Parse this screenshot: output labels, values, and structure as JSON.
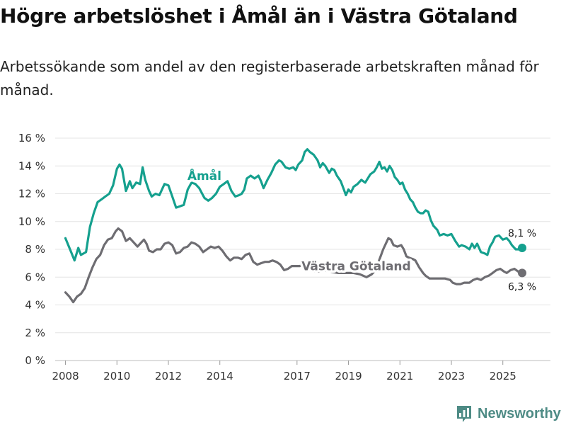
{
  "title": "Högre arbetslöshet i Åmål än i Västra Götaland",
  "subtitle": "Arbetssökande som andel av den registerbaserade arbetskraften månad för månad.",
  "brand": {
    "name": "Newsworthy",
    "icon": "newsworthy-logo-icon",
    "color": "#4e8b85"
  },
  "chart_data": {
    "type": "line",
    "title": "Högre arbetslöshet i Åmål än i Västra Götaland",
    "xlabel": "",
    "ylabel": "",
    "xlim": [
      2007.6,
      2026.85
    ],
    "ylim": [
      0,
      16
    ],
    "yticks": [
      0,
      2,
      4,
      6,
      8,
      10,
      12,
      14,
      16
    ],
    "ytick_labels": [
      "0 %",
      "2 %",
      "4 %",
      "6 %",
      "8 %",
      "10 %",
      "12 %",
      "14 %",
      "16 %"
    ],
    "xticks": [
      2008,
      2010,
      2012,
      2014,
      2017,
      2019,
      2021,
      2023,
      2025
    ],
    "xtick_labels": [
      "2008",
      "2010",
      "2012",
      "2014",
      "2017",
      "2019",
      "2021",
      "2023",
      "2025"
    ],
    "grid": true,
    "legend": "inline",
    "series": [
      {
        "name": "Åmål",
        "color": "#15a08e",
        "label_at": [
          2013.4,
          13.0
        ],
        "end_label": "8,1 %",
        "points": [
          [
            2008.0,
            8.8
          ],
          [
            2008.2,
            7.9
          ],
          [
            2008.35,
            7.2
          ],
          [
            2008.5,
            8.1
          ],
          [
            2008.6,
            7.6
          ],
          [
            2008.8,
            7.8
          ],
          [
            2008.95,
            9.6
          ],
          [
            2009.1,
            10.6
          ],
          [
            2009.25,
            11.4
          ],
          [
            2009.4,
            11.6
          ],
          [
            2009.55,
            11.8
          ],
          [
            2009.7,
            12.0
          ],
          [
            2009.85,
            12.6
          ],
          [
            2010.0,
            13.8
          ],
          [
            2010.1,
            14.1
          ],
          [
            2010.2,
            13.8
          ],
          [
            2010.35,
            12.2
          ],
          [
            2010.5,
            12.9
          ],
          [
            2010.6,
            12.4
          ],
          [
            2010.75,
            12.8
          ],
          [
            2010.9,
            12.7
          ],
          [
            2011.0,
            13.9
          ],
          [
            2011.1,
            13.0
          ],
          [
            2011.25,
            12.2
          ],
          [
            2011.35,
            11.8
          ],
          [
            2011.5,
            12.0
          ],
          [
            2011.65,
            11.9
          ],
          [
            2011.85,
            12.7
          ],
          [
            2012.0,
            12.6
          ],
          [
            2012.15,
            11.8
          ],
          [
            2012.3,
            11.0
          ],
          [
            2012.45,
            11.1
          ],
          [
            2012.6,
            11.2
          ],
          [
            2012.75,
            12.3
          ],
          [
            2012.9,
            12.8
          ],
          [
            2013.05,
            12.7
          ],
          [
            2013.2,
            12.4
          ],
          [
            2013.4,
            11.7
          ],
          [
            2013.55,
            11.5
          ],
          [
            2013.7,
            11.7
          ],
          [
            2013.85,
            12.0
          ],
          [
            2014.0,
            12.5
          ],
          [
            2014.15,
            12.7
          ],
          [
            2014.3,
            12.9
          ],
          [
            2014.45,
            12.2
          ],
          [
            2014.6,
            11.8
          ],
          [
            2014.75,
            11.9
          ],
          [
            2014.85,
            12.0
          ],
          [
            2014.95,
            12.3
          ],
          [
            2015.05,
            13.1
          ],
          [
            2015.2,
            13.3
          ],
          [
            2015.35,
            13.1
          ],
          [
            2015.5,
            13.3
          ],
          [
            2015.6,
            12.9
          ],
          [
            2015.7,
            12.4
          ],
          [
            2015.85,
            13.0
          ],
          [
            2016.0,
            13.5
          ],
          [
            2016.15,
            14.1
          ],
          [
            2016.3,
            14.4
          ],
          [
            2016.4,
            14.3
          ],
          [
            2016.55,
            13.9
          ],
          [
            2016.7,
            13.8
          ],
          [
            2016.85,
            13.9
          ],
          [
            2016.95,
            13.7
          ],
          [
            2017.05,
            14.1
          ],
          [
            2017.2,
            14.4
          ],
          [
            2017.3,
            15.0
          ],
          [
            2017.4,
            15.2
          ],
          [
            2017.5,
            15.0
          ],
          [
            2017.65,
            14.8
          ],
          [
            2017.8,
            14.4
          ],
          [
            2017.9,
            13.9
          ],
          [
            2018.0,
            14.2
          ],
          [
            2018.1,
            14.0
          ],
          [
            2018.25,
            13.5
          ],
          [
            2018.35,
            13.8
          ],
          [
            2018.45,
            13.7
          ],
          [
            2018.55,
            13.3
          ],
          [
            2018.7,
            12.9
          ],
          [
            2018.8,
            12.4
          ],
          [
            2018.9,
            11.9
          ],
          [
            2019.0,
            12.3
          ],
          [
            2019.1,
            12.1
          ],
          [
            2019.2,
            12.5
          ],
          [
            2019.35,
            12.7
          ],
          [
            2019.5,
            13.0
          ],
          [
            2019.65,
            12.8
          ],
          [
            2019.75,
            13.1
          ],
          [
            2019.85,
            13.4
          ],
          [
            2020.0,
            13.6
          ],
          [
            2020.1,
            13.9
          ],
          [
            2020.2,
            14.3
          ],
          [
            2020.3,
            13.8
          ],
          [
            2020.4,
            13.9
          ],
          [
            2020.5,
            13.6
          ],
          [
            2020.6,
            14.0
          ],
          [
            2020.7,
            13.7
          ],
          [
            2020.8,
            13.2
          ],
          [
            2020.9,
            13.0
          ],
          [
            2021.0,
            12.7
          ],
          [
            2021.1,
            12.8
          ],
          [
            2021.2,
            12.3
          ],
          [
            2021.3,
            12.0
          ],
          [
            2021.4,
            11.6
          ],
          [
            2021.5,
            11.4
          ],
          [
            2021.6,
            11.0
          ],
          [
            2021.7,
            10.7
          ],
          [
            2021.8,
            10.6
          ],
          [
            2021.9,
            10.6
          ],
          [
            2022.0,
            10.8
          ],
          [
            2022.1,
            10.7
          ],
          [
            2022.2,
            10.1
          ],
          [
            2022.3,
            9.7
          ],
          [
            2022.45,
            9.4
          ],
          [
            2022.55,
            9.0
          ],
          [
            2022.7,
            9.1
          ],
          [
            2022.85,
            9.0
          ],
          [
            2023.0,
            9.1
          ],
          [
            2023.15,
            8.6
          ],
          [
            2023.3,
            8.2
          ],
          [
            2023.4,
            8.3
          ],
          [
            2023.55,
            8.2
          ],
          [
            2023.7,
            8.0
          ],
          [
            2023.8,
            8.4
          ],
          [
            2023.9,
            8.1
          ],
          [
            2024.0,
            8.4
          ],
          [
            2024.15,
            7.8
          ],
          [
            2024.3,
            7.7
          ],
          [
            2024.4,
            7.6
          ],
          [
            2024.5,
            8.2
          ],
          [
            2024.6,
            8.5
          ],
          [
            2024.7,
            8.9
          ],
          [
            2024.85,
            9.0
          ],
          [
            2025.0,
            8.7
          ],
          [
            2025.15,
            8.8
          ],
          [
            2025.25,
            8.6
          ],
          [
            2025.35,
            8.3
          ],
          [
            2025.5,
            8.0
          ],
          [
            2025.65,
            8.0
          ],
          [
            2025.75,
            8.1
          ]
        ]
      },
      {
        "name": "Västra Götaland",
        "color": "#6e6d72",
        "label_at": [
          2019.3,
          6.5
        ],
        "end_label": "6,3 %",
        "points": [
          [
            2008.0,
            4.9
          ],
          [
            2008.15,
            4.6
          ],
          [
            2008.3,
            4.2
          ],
          [
            2008.45,
            4.6
          ],
          [
            2008.6,
            4.8
          ],
          [
            2008.75,
            5.2
          ],
          [
            2008.9,
            6.0
          ],
          [
            2009.05,
            6.7
          ],
          [
            2009.2,
            7.3
          ],
          [
            2009.35,
            7.6
          ],
          [
            2009.5,
            8.3
          ],
          [
            2009.65,
            8.7
          ],
          [
            2009.8,
            8.8
          ],
          [
            2009.95,
            9.3
          ],
          [
            2010.05,
            9.5
          ],
          [
            2010.2,
            9.3
          ],
          [
            2010.35,
            8.6
          ],
          [
            2010.5,
            8.8
          ],
          [
            2010.65,
            8.5
          ],
          [
            2010.8,
            8.2
          ],
          [
            2010.95,
            8.5
          ],
          [
            2011.05,
            8.7
          ],
          [
            2011.15,
            8.4
          ],
          [
            2011.25,
            7.9
          ],
          [
            2011.4,
            7.8
          ],
          [
            2011.55,
            8.0
          ],
          [
            2011.7,
            8.0
          ],
          [
            2011.85,
            8.4
          ],
          [
            2012.0,
            8.5
          ],
          [
            2012.15,
            8.3
          ],
          [
            2012.3,
            7.7
          ],
          [
            2012.45,
            7.8
          ],
          [
            2012.6,
            8.1
          ],
          [
            2012.75,
            8.2
          ],
          [
            2012.9,
            8.5
          ],
          [
            2013.05,
            8.4
          ],
          [
            2013.2,
            8.2
          ],
          [
            2013.35,
            7.8
          ],
          [
            2013.5,
            8.0
          ],
          [
            2013.65,
            8.2
          ],
          [
            2013.8,
            8.1
          ],
          [
            2013.95,
            8.2
          ],
          [
            2014.1,
            7.9
          ],
          [
            2014.25,
            7.5
          ],
          [
            2014.4,
            7.2
          ],
          [
            2014.55,
            7.4
          ],
          [
            2014.7,
            7.4
          ],
          [
            2014.85,
            7.3
          ],
          [
            2015.0,
            7.6
          ],
          [
            2015.15,
            7.7
          ],
          [
            2015.3,
            7.1
          ],
          [
            2015.45,
            6.9
          ],
          [
            2015.6,
            7.0
          ],
          [
            2015.75,
            7.1
          ],
          [
            2015.9,
            7.1
          ],
          [
            2016.05,
            7.2
          ],
          [
            2016.2,
            7.1
          ],
          [
            2016.35,
            6.9
          ],
          [
            2016.5,
            6.5
          ],
          [
            2016.65,
            6.6
          ],
          [
            2016.8,
            6.8
          ],
          [
            2016.95,
            6.8
          ],
          [
            2017.1,
            6.8
          ],
          [
            2017.25,
            6.9
          ],
          [
            2017.4,
            6.9
          ],
          [
            2017.55,
            6.7
          ],
          [
            2017.7,
            6.4
          ],
          [
            2017.85,
            6.4
          ],
          [
            2018.0,
            6.5
          ],
          [
            2018.3,
            6.4
          ],
          [
            2018.6,
            6.3
          ],
          [
            2018.9,
            6.3
          ],
          [
            2019.2,
            6.3
          ],
          [
            2019.45,
            6.2
          ],
          [
            2019.7,
            6.0
          ],
          [
            2019.9,
            6.2
          ],
          [
            2020.05,
            6.5
          ],
          [
            2020.15,
            7.0
          ],
          [
            2020.25,
            7.5
          ],
          [
            2020.35,
            8.0
          ],
          [
            2020.45,
            8.4
          ],
          [
            2020.55,
            8.8
          ],
          [
            2020.65,
            8.7
          ],
          [
            2020.75,
            8.3
          ],
          [
            2020.9,
            8.2
          ],
          [
            2021.05,
            8.3
          ],
          [
            2021.15,
            8.0
          ],
          [
            2021.25,
            7.5
          ],
          [
            2021.35,
            7.4
          ],
          [
            2021.5,
            7.3
          ],
          [
            2021.6,
            7.2
          ],
          [
            2021.75,
            6.7
          ],
          [
            2021.9,
            6.3
          ],
          [
            2022.0,
            6.1
          ],
          [
            2022.15,
            5.9
          ],
          [
            2022.35,
            5.9
          ],
          [
            2022.55,
            5.9
          ],
          [
            2022.75,
            5.9
          ],
          [
            2022.95,
            5.8
          ],
          [
            2023.05,
            5.6
          ],
          [
            2023.2,
            5.5
          ],
          [
            2023.35,
            5.5
          ],
          [
            2023.5,
            5.6
          ],
          [
            2023.7,
            5.6
          ],
          [
            2023.85,
            5.8
          ],
          [
            2024.0,
            5.9
          ],
          [
            2024.15,
            5.8
          ],
          [
            2024.3,
            6.0
          ],
          [
            2024.45,
            6.1
          ],
          [
            2024.6,
            6.3
          ],
          [
            2024.75,
            6.5
          ],
          [
            2024.9,
            6.6
          ],
          [
            2025.05,
            6.4
          ],
          [
            2025.15,
            6.3
          ],
          [
            2025.3,
            6.5
          ],
          [
            2025.45,
            6.6
          ],
          [
            2025.6,
            6.4
          ],
          [
            2025.75,
            6.3
          ]
        ]
      }
    ]
  }
}
